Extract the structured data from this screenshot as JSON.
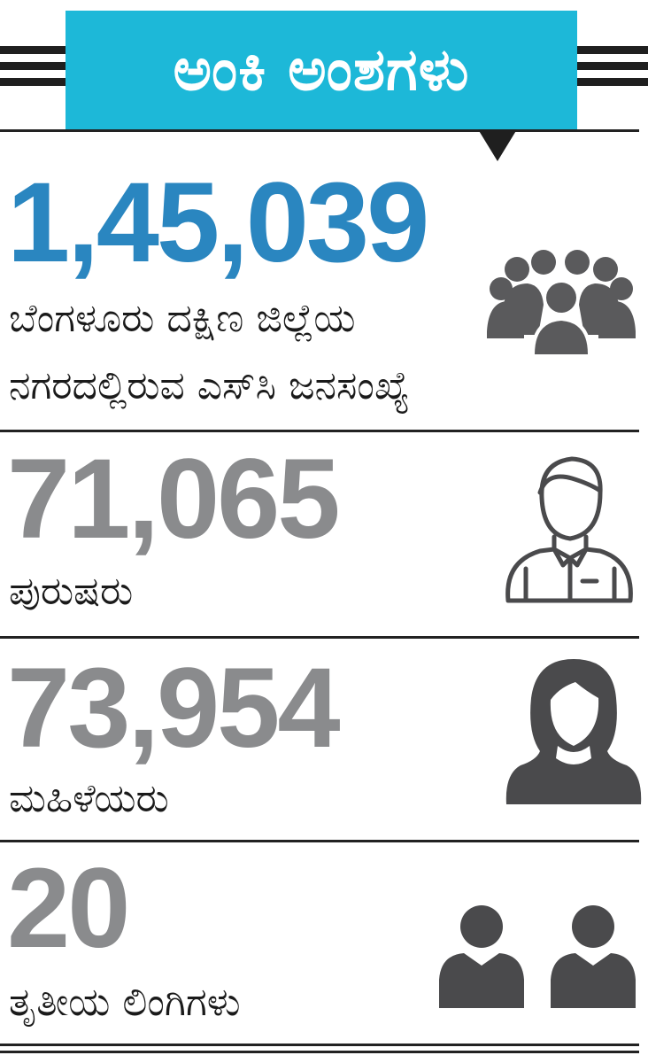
{
  "header": {
    "title": "ಅಂಕಿ ಅಂಶಗಳು",
    "accent_color": "#1db8d8"
  },
  "stats": [
    {
      "number": "1,45,039",
      "label_line1": "ಬೆಂಗಳೂರು ದಕ್ಷಿಣ ಜಿಲ್ಲೆಯ",
      "label_line2": "ನಗರದಲ್ಲಿರುವ ಎಸ್‌ಸಿ ಜನಸಂಖ್ಯೆ",
      "icon": "group-people-icon",
      "color": "#2a86c0"
    },
    {
      "number": "71,065",
      "label_line1": "ಪುರುಷರು",
      "icon": "man-icon",
      "color": "#8a8b8d"
    },
    {
      "number": "73,954",
      "label_line1": "ಮಹಿಳೆಯರು",
      "icon": "woman-icon",
      "color": "#8a8b8d"
    },
    {
      "number": "20",
      "label_line1": "ತೃತೀಯ ಲಿಂಗಿಗಳು",
      "icon": "two-persons-icon",
      "color": "#8a8b8d"
    }
  ]
}
